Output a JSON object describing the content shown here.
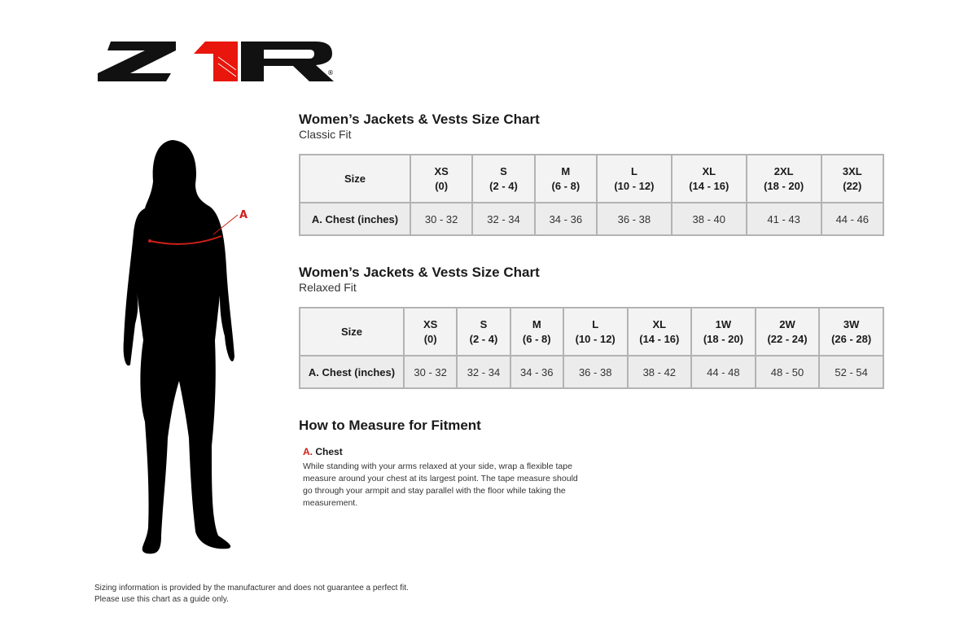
{
  "logo": {
    "text": "Z1R",
    "registered": "®",
    "colors": {
      "black": "#111111",
      "red": "#e8160c"
    }
  },
  "figure": {
    "marker_label": "A",
    "marker_color": "#d0201a"
  },
  "classic": {
    "title": "Women’s Jackets & Vests Size Chart",
    "subtitle": "Classic Fit",
    "header_label": "Size",
    "sizes": [
      [
        "XS",
        "(0)"
      ],
      [
        "S",
        "(2 - 4)"
      ],
      [
        "M",
        "(6 - 8)"
      ],
      [
        "L",
        "(10 - 12)"
      ],
      [
        "XL",
        "(14 - 16)"
      ],
      [
        "2XL",
        "(18 - 20)"
      ],
      [
        "3XL",
        "(22)"
      ]
    ],
    "row_label": "A. Chest (inches)",
    "chest": [
      "30 - 32",
      "32 - 34",
      "34 - 36",
      "36 - 38",
      "38 - 40",
      "41 - 43",
      "44 - 46"
    ]
  },
  "relaxed": {
    "title": "Women’s Jackets & Vests Size Chart",
    "subtitle": "Relaxed Fit",
    "header_label": "Size",
    "sizes": [
      [
        "XS",
        "(0)"
      ],
      [
        "S",
        "(2 - 4)"
      ],
      [
        "M",
        "(6 - 8)"
      ],
      [
        "L",
        "(10 - 12)"
      ],
      [
        "XL",
        "(14 - 16)"
      ],
      [
        "1W",
        "(18 - 20)"
      ],
      [
        "2W",
        "(22 - 24)"
      ],
      [
        "3W",
        "(26 - 28)"
      ]
    ],
    "row_label": "A. Chest (inches)",
    "chest": [
      "30 - 32",
      "32 - 34",
      "34 - 36",
      "36 - 38",
      "38 - 42",
      "44 - 48",
      "48 - 50",
      "52 - 54"
    ]
  },
  "howto": {
    "title": "How to Measure for Fitment",
    "item_letter": "A.",
    "item_name": "Chest",
    "description": "While standing with your arms relaxed at your side, wrap a flexible tape measure around your chest at its largest point. The tape measure should go through your armpit and stay parallel with the floor while taking the measurement."
  },
  "footer": {
    "line1": "Sizing information is provided by the manufacturer and does not guarantee a perfect fit.",
    "line2": "Please use this chart as a guide only."
  }
}
